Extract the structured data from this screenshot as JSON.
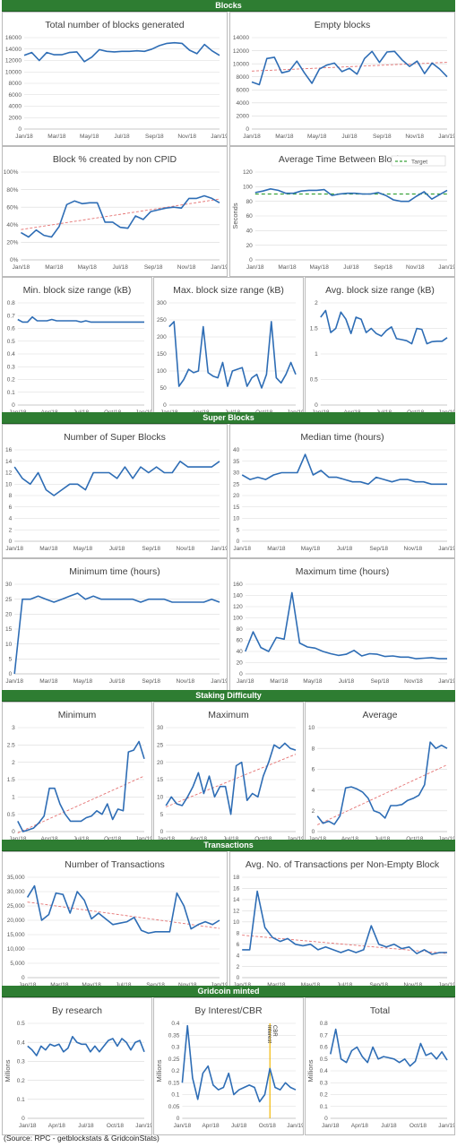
{
  "sections": [
    {
      "title": "Blocks"
    },
    {
      "title": "Super Blocks"
    },
    {
      "title": "Staking Difficulty"
    },
    {
      "title": "Transactions"
    },
    {
      "title": "Gridcoin minted"
    }
  ],
  "source": "(Source: RPC - getblockstats & GridcoinStats)",
  "chart_data": [
    {
      "id": "c1",
      "type": "line",
      "title": "Total number of blocks generated",
      "ylabel": "",
      "ylim": [
        0,
        16000
      ],
      "yticks": [
        0,
        2000,
        4000,
        6000,
        8000,
        10000,
        12000,
        14000,
        16000
      ],
      "xticks": [
        "Jan/18",
        "Mar/18",
        "May/18",
        "Jul/18",
        "Sep/18",
        "Nov/18",
        "Jan/19"
      ],
      "series": [
        {
          "values": [
            12900,
            13400,
            12000,
            13400,
            13000,
            13000,
            13400,
            13500,
            11800,
            12600,
            13900,
            13600,
            13500,
            13600,
            13600,
            13700,
            13600,
            14000,
            14600,
            15000,
            15100,
            15000,
            13800,
            13200,
            14800,
            13700,
            12900
          ]
        }
      ],
      "trend": false
    },
    {
      "id": "c2",
      "type": "line",
      "title": "Empty blocks",
      "ylabel": "",
      "ylim": [
        0,
        14000
      ],
      "yticks": [
        0,
        2000,
        4000,
        6000,
        8000,
        10000,
        12000,
        14000
      ],
      "xticks": [
        "Jan/18",
        "Mar/18",
        "May/18",
        "Jul/18",
        "Sep/18",
        "Nov/18",
        "Jan/19"
      ],
      "series": [
        {
          "values": [
            7200,
            6800,
            10800,
            11000,
            8600,
            8900,
            10400,
            8600,
            7000,
            9200,
            9800,
            10100,
            8800,
            9300,
            8400,
            10800,
            11900,
            10200,
            11800,
            11900,
            10600,
            9600,
            10400,
            8500,
            10100,
            9200,
            8000
          ]
        }
      ],
      "trend": true
    },
    {
      "id": "c3",
      "type": "line",
      "title": "Block % created by non CPID",
      "ylabel": "",
      "ylim": [
        0,
        100
      ],
      "yticks": [
        "0%",
        "20%",
        "40%",
        "60%",
        "80%",
        "100%"
      ],
      "ytickvals": [
        0,
        20,
        40,
        60,
        80,
        100
      ],
      "xticks": [
        "Jan/18",
        "Mar/18",
        "May/18",
        "Jul/18",
        "Sep/18",
        "Nov/18",
        "Jan/19"
      ],
      "series": [
        {
          "values": [
            31,
            26,
            34,
            28,
            26,
            38,
            63,
            67,
            64,
            65,
            65,
            43,
            43,
            37,
            36,
            50,
            46,
            55,
            57,
            59,
            60,
            59,
            70,
            70,
            73,
            70,
            65
          ]
        }
      ],
      "trend": true
    },
    {
      "id": "c4",
      "type": "line",
      "title": "Average Time Between Blocks",
      "ylabel": "Seconds",
      "ylim": [
        0,
        120
      ],
      "yticks": [
        0,
        20,
        40,
        60,
        80,
        100,
        120
      ],
      "xticks": [
        "Jan/18",
        "Mar/18",
        "May/18",
        "Jul/18",
        "Sep/18",
        "Nov/18",
        "Jan/19"
      ],
      "series": [
        {
          "values": [
            92,
            94,
            97,
            95,
            91,
            91,
            94,
            95,
            95,
            96,
            88,
            90,
            91,
            91,
            90,
            90,
            92,
            88,
            82,
            80,
            80,
            87,
            93,
            83,
            89,
            95
          ]
        }
      ],
      "target": 90,
      "legend": "Target",
      "trend": false
    },
    {
      "id": "c5",
      "type": "line",
      "title": "Min. block size range (kB)",
      "ylabel": "",
      "ylim": [
        0,
        0.8
      ],
      "yticks": [
        0,
        0.1,
        0.2,
        0.3,
        0.4,
        0.5,
        0.6,
        0.7,
        0.8
      ],
      "xticks": [
        "Jan/18",
        "Apr/18",
        "Jul/18",
        "Oct/18",
        "Jan/19"
      ],
      "series": [
        {
          "values": [
            0.67,
            0.65,
            0.65,
            0.69,
            0.66,
            0.66,
            0.66,
            0.67,
            0.66,
            0.66,
            0.66,
            0.66,
            0.66,
            0.65,
            0.66,
            0.65,
            0.65,
            0.65,
            0.65,
            0.65,
            0.65,
            0.65,
            0.65,
            0.65,
            0.65,
            0.65,
            0.65
          ]
        }
      ],
      "trend": false
    },
    {
      "id": "c6",
      "type": "line",
      "title": "Max. block size range (kB)",
      "ylabel": "",
      "ylim": [
        0,
        300
      ],
      "yticks": [
        0,
        50,
        100,
        150,
        200,
        250,
        300
      ],
      "xticks": [
        "Jan/18",
        "Apr/18",
        "Jul/18",
        "Oct/18",
        "Jan/19"
      ],
      "series": [
        {
          "values": [
            230,
            245,
            55,
            75,
            105,
            95,
            100,
            230,
            95,
            85,
            80,
            125,
            55,
            100,
            105,
            110,
            55,
            80,
            90,
            50,
            90,
            245,
            80,
            65,
            90,
            125,
            90
          ]
        }
      ],
      "trend": false
    },
    {
      "id": "c7",
      "type": "line",
      "title": "Avg. block size range (kB)",
      "ylabel": "",
      "ylim": [
        0,
        2
      ],
      "yticks": [
        0,
        0.5,
        1,
        1.5,
        2
      ],
      "xticks": [
        "Jan/18",
        "Apr/18",
        "Jul/18",
        "Oct/18",
        "Jan/19"
      ],
      "series": [
        {
          "values": [
            1.72,
            1.85,
            1.42,
            1.5,
            1.82,
            1.68,
            1.4,
            1.72,
            1.68,
            1.42,
            1.5,
            1.4,
            1.35,
            1.46,
            1.53,
            1.3,
            1.28,
            1.26,
            1.2,
            1.5,
            1.48,
            1.2,
            1.24,
            1.25,
            1.25,
            1.32
          ]
        }
      ],
      "trend": false
    },
    {
      "id": "c8",
      "type": "line",
      "title": "Number of Super Blocks",
      "ylabel": "",
      "ylim": [
        0,
        16
      ],
      "yticks": [
        0,
        2,
        4,
        6,
        8,
        10,
        12,
        14,
        16
      ],
      "xticks": [
        "Jan/18",
        "Mar/18",
        "May/18",
        "Jul/18",
        "Sep/18",
        "Nov/18",
        "Jan/19"
      ],
      "series": [
        {
          "values": [
            13,
            11,
            10,
            12,
            9,
            8,
            9,
            10,
            10,
            9,
            12,
            12,
            12,
            11,
            13,
            11,
            13,
            12,
            13,
            12,
            12,
            14,
            13,
            13,
            13,
            13,
            14
          ]
        }
      ],
      "trend": false
    },
    {
      "id": "c9",
      "type": "line",
      "title": "Median time (hours)",
      "ylabel": "",
      "ylim": [
        0,
        40
      ],
      "yticks": [
        0,
        5,
        10,
        15,
        20,
        25,
        30,
        35,
        40
      ],
      "xticks": [
        "Jan/18",
        "Mar/18",
        "May/18",
        "Jul/18",
        "Sep/18",
        "Nov/18",
        "Jan/19"
      ],
      "series": [
        {
          "values": [
            29,
            27,
            28,
            27,
            29,
            30,
            30,
            30,
            38,
            29,
            31,
            28,
            28,
            27,
            26,
            26,
            25,
            28,
            27,
            26,
            27,
            27,
            26,
            26,
            25,
            25,
            25
          ]
        }
      ],
      "trend": false
    },
    {
      "id": "c10",
      "type": "line",
      "title": "Minimum time (hours)",
      "ylabel": "",
      "ylim": [
        0,
        30
      ],
      "yticks": [
        0,
        5,
        10,
        15,
        20,
        25,
        30
      ],
      "xticks": [
        "Jan/18",
        "Mar/18",
        "May/18",
        "Jul/18",
        "Sep/18",
        "Nov/18",
        "Jan/19"
      ],
      "series": [
        {
          "values": [
            0,
            25,
            25,
            26,
            25,
            24,
            25,
            26,
            27,
            25,
            26,
            25,
            25,
            25,
            25,
            25,
            24,
            25,
            25,
            25,
            24,
            24,
            24,
            24,
            24,
            25,
            24
          ]
        }
      ],
      "trend": false
    },
    {
      "id": "c11",
      "type": "line",
      "title": "Maximum time (hours)",
      "ylabel": "",
      "ylim": [
        0,
        160
      ],
      "yticks": [
        0,
        20,
        40,
        60,
        80,
        100,
        120,
        140,
        160
      ],
      "xticks": [
        "Jan/18",
        "Mar/18",
        "May/18",
        "Jul/18",
        "Sep/18",
        "Nov/18",
        "Jan/19"
      ],
      "series": [
        {
          "values": [
            40,
            75,
            47,
            40,
            65,
            62,
            145,
            55,
            48,
            46,
            40,
            36,
            33,
            35,
            42,
            32,
            36,
            35,
            31,
            32,
            30,
            30,
            27,
            28,
            29,
            27,
            27
          ]
        }
      ],
      "trend": false
    },
    {
      "id": "c12",
      "type": "line",
      "title": "Minimum",
      "ylabel": "",
      "ylim": [
        0,
        3
      ],
      "yticks": [
        0,
        0.5,
        1,
        1.5,
        2,
        2.5,
        3
      ],
      "xticks": [
        "Jan/18",
        "Apr/18",
        "Jul/18",
        "Oct/18",
        "Jan/19"
      ],
      "series": [
        {
          "values": [
            0.3,
            0.0,
            0.05,
            0.1,
            0.25,
            0.45,
            1.25,
            1.25,
            0.8,
            0.5,
            0.3,
            0.3,
            0.3,
            0.4,
            0.45,
            0.6,
            0.5,
            0.8,
            0.35,
            0.65,
            0.6,
            2.3,
            2.35,
            2.6,
            2.1
          ]
        }
      ],
      "trend": true,
      "trend_range": [
        0,
        1.55
      ]
    },
    {
      "id": "c13",
      "type": "line",
      "title": "Maximum",
      "ylabel": "",
      "ylim": [
        0,
        30
      ],
      "yticks": [
        0,
        5,
        10,
        15,
        20,
        25,
        30
      ],
      "xticks": [
        "Jan/18",
        "Apr/18",
        "Jul/18",
        "Oct/18",
        "Jan/19"
      ],
      "series": [
        {
          "values": [
            7.5,
            10,
            8,
            7.5,
            10,
            13,
            17,
            11,
            16,
            10,
            13,
            13,
            5,
            19,
            20,
            9,
            11,
            10,
            16,
            20,
            25,
            24,
            25.5,
            24,
            23.5
          ]
        }
      ],
      "trend": true,
      "trend_range": [
        8,
        22
      ]
    },
    {
      "id": "c14",
      "type": "line",
      "title": "Average",
      "ylabel": "",
      "ylim": [
        0,
        10
      ],
      "yticks": [
        0,
        2,
        4,
        6,
        8,
        10
      ],
      "xticks": [
        "Jan/18",
        "Apr/18",
        "Jul/18",
        "Oct/18",
        "Jan/19"
      ],
      "series": [
        {
          "values": [
            1.5,
            0.8,
            1.0,
            0.7,
            1.5,
            4.2,
            4.3,
            4.1,
            3.8,
            3.2,
            2.0,
            1.8,
            1.3,
            2.5,
            2.5,
            2.6,
            3.0,
            3.2,
            3.5,
            4.5,
            8.6,
            8.0,
            8.3,
            8.0
          ]
        }
      ],
      "trend": true,
      "trend_range": [
        0.8,
        6.6
      ]
    },
    {
      "id": "c15",
      "type": "line",
      "title": "Number of Transactions",
      "ylabel": "",
      "ylim": [
        0,
        35000
      ],
      "yticks": [
        "0",
        "5,000",
        "10,000",
        "15,000",
        "20,000",
        "25,000",
        "30,000",
        "35,000"
      ],
      "ytickvals": [
        0,
        5000,
        10000,
        15000,
        20000,
        25000,
        30000,
        35000
      ],
      "xticks": [
        "Jan/18",
        "Mar/18",
        "May/18",
        "Jul/18",
        "Sep/18",
        "Nov/18",
        "Jan/19"
      ],
      "series": [
        {
          "values": [
            28000,
            32000,
            20000,
            22000,
            29500,
            29000,
            22500,
            30000,
            27000,
            20500,
            22500,
            20500,
            18500,
            19000,
            19500,
            21000,
            16500,
            15500,
            16000,
            16000,
            16000,
            29500,
            25000,
            17000,
            18500,
            19500,
            18500,
            20000
          ]
        }
      ],
      "trend": true
    },
    {
      "id": "c16",
      "type": "line",
      "title": "Avg. No. of Transactions per Non-Empty Block",
      "ylabel": "",
      "ylim": [
        0,
        18
      ],
      "yticks": [
        0,
        2,
        4,
        6,
        8,
        10,
        12,
        14,
        16,
        18
      ],
      "xticks": [
        "Jan/18",
        "Mar/18",
        "May/18",
        "Jul/18",
        "Sep/18",
        "Nov/18",
        "Jan/19"
      ],
      "series": [
        {
          "values": [
            5,
            5,
            15.5,
            9,
            7.2,
            6.5,
            7,
            6,
            5.7,
            6,
            5,
            5.5,
            5,
            4.5,
            5,
            4.5,
            5,
            9.3,
            6,
            5.5,
            6,
            5.2,
            5.5,
            4.3,
            5,
            4.2,
            4.5,
            4.5
          ]
        }
      ],
      "trend": true
    },
    {
      "id": "c17",
      "type": "line",
      "title": "By research",
      "ylabel": "Millions",
      "ylim": [
        0,
        0.5
      ],
      "yticks": [
        0,
        0.1,
        0.2,
        0.3,
        0.4,
        0.5
      ],
      "xticks": [
        "Jan/18",
        "Apr/18",
        "Jul/18",
        "Oct/18",
        "Jan/19"
      ],
      "series": [
        {
          "values": [
            0.38,
            0.36,
            0.33,
            0.38,
            0.36,
            0.39,
            0.38,
            0.39,
            0.35,
            0.37,
            0.43,
            0.4,
            0.39,
            0.39,
            0.35,
            0.38,
            0.35,
            0.38,
            0.41,
            0.42,
            0.38,
            0.42,
            0.4,
            0.36,
            0.4,
            0.41,
            0.35
          ]
        }
      ],
      "trend": false
    },
    {
      "id": "c18",
      "type": "line",
      "title": "By Interest/CBR",
      "ylabel": "Millions",
      "ylim": [
        0,
        0.4
      ],
      "yticks": [
        0,
        0.05,
        0.1,
        0.15,
        0.2,
        0.25,
        0.3,
        0.35,
        0.4
      ],
      "xticks": [
        "Jan/18",
        "Apr/18",
        "Jul/18",
        "Oct/18",
        "Jan/19"
      ],
      "series": [
        {
          "values": [
            0.15,
            0.39,
            0.17,
            0.08,
            0.19,
            0.22,
            0.14,
            0.12,
            0.13,
            0.19,
            0.1,
            0.12,
            0.13,
            0.14,
            0.13,
            0.07,
            0.1,
            0.21,
            0.13,
            0.12,
            0.15,
            0.13,
            0.12
          ]
        }
      ],
      "trend": false,
      "annotations": [
        "Interest",
        "CBR"
      ]
    },
    {
      "id": "c19",
      "type": "line",
      "title": "Total",
      "ylabel": "Millions",
      "ylim": [
        0,
        0.8
      ],
      "yticks": [
        0,
        0.1,
        0.2,
        0.3,
        0.4,
        0.5,
        0.6,
        0.7,
        0.8
      ],
      "xticks": [
        "Jan/18",
        "Apr/18",
        "Jul/18",
        "Oct/18",
        "Jan/19"
      ],
      "series": [
        {
          "values": [
            0.54,
            0.75,
            0.5,
            0.47,
            0.57,
            0.6,
            0.52,
            0.47,
            0.6,
            0.5,
            0.52,
            0.51,
            0.5,
            0.47,
            0.5,
            0.44,
            0.48,
            0.63,
            0.53,
            0.55,
            0.5,
            0.56,
            0.49
          ]
        }
      ],
      "trend": false
    }
  ]
}
